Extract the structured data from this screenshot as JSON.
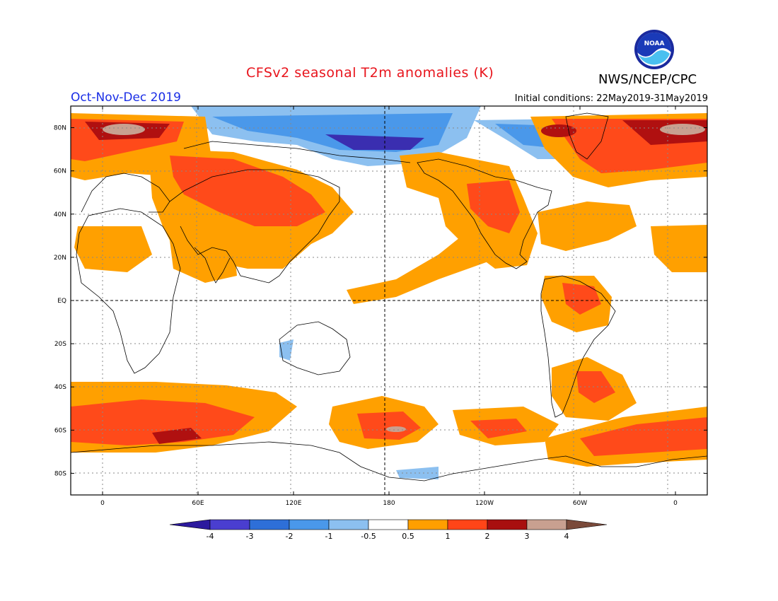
{
  "header": {
    "title": "CFSv2 seasonal T2m anomalies (K)",
    "agency": "NWS/NCEP/CPC",
    "logo_text": "NOAA",
    "season": "Oct-Nov-Dec 2019",
    "initial_conditions": "Initial conditions: 22May2019-31May2019"
  },
  "axes": {
    "lat_labels": [
      "80N",
      "60N",
      "40N",
      "20N",
      "EQ",
      "20S",
      "40S",
      "60S",
      "80S"
    ],
    "lat_values": [
      80,
      60,
      40,
      20,
      0,
      -20,
      -40,
      -60,
      -80
    ],
    "lon_labels": [
      "0",
      "60E",
      "120E",
      "180",
      "120W",
      "60W",
      "0"
    ],
    "lon_values": [
      0,
      60,
      120,
      180,
      240,
      300,
      360
    ],
    "lon_range": [
      -20,
      380
    ],
    "lat_range": [
      -90,
      90
    ]
  },
  "colorbar": {
    "levels": [
      "-4",
      "-3",
      "-2",
      "-1",
      "-0.5",
      "0.5",
      "1",
      "2",
      "3",
      "4"
    ],
    "colors": [
      "#2c1a9e",
      "#4a3ed0",
      "#2e6fd8",
      "#4a98ea",
      "#8cc0f0",
      "#ffffff",
      "#ff9f00",
      "#ff4518",
      "#a80f0f",
      "#c8a090",
      "#7a4a3a"
    ]
  },
  "anomaly_colors": {
    "warm1": "#ffa000",
    "warm2": "#ff4a1a",
    "warm3": "#b01010",
    "warm4": "#c8a090",
    "cold1": "#8cc0f0",
    "cold2": "#4a98ea",
    "cold3": "#2e6fd8",
    "cold4": "#3a2eb0"
  }
}
